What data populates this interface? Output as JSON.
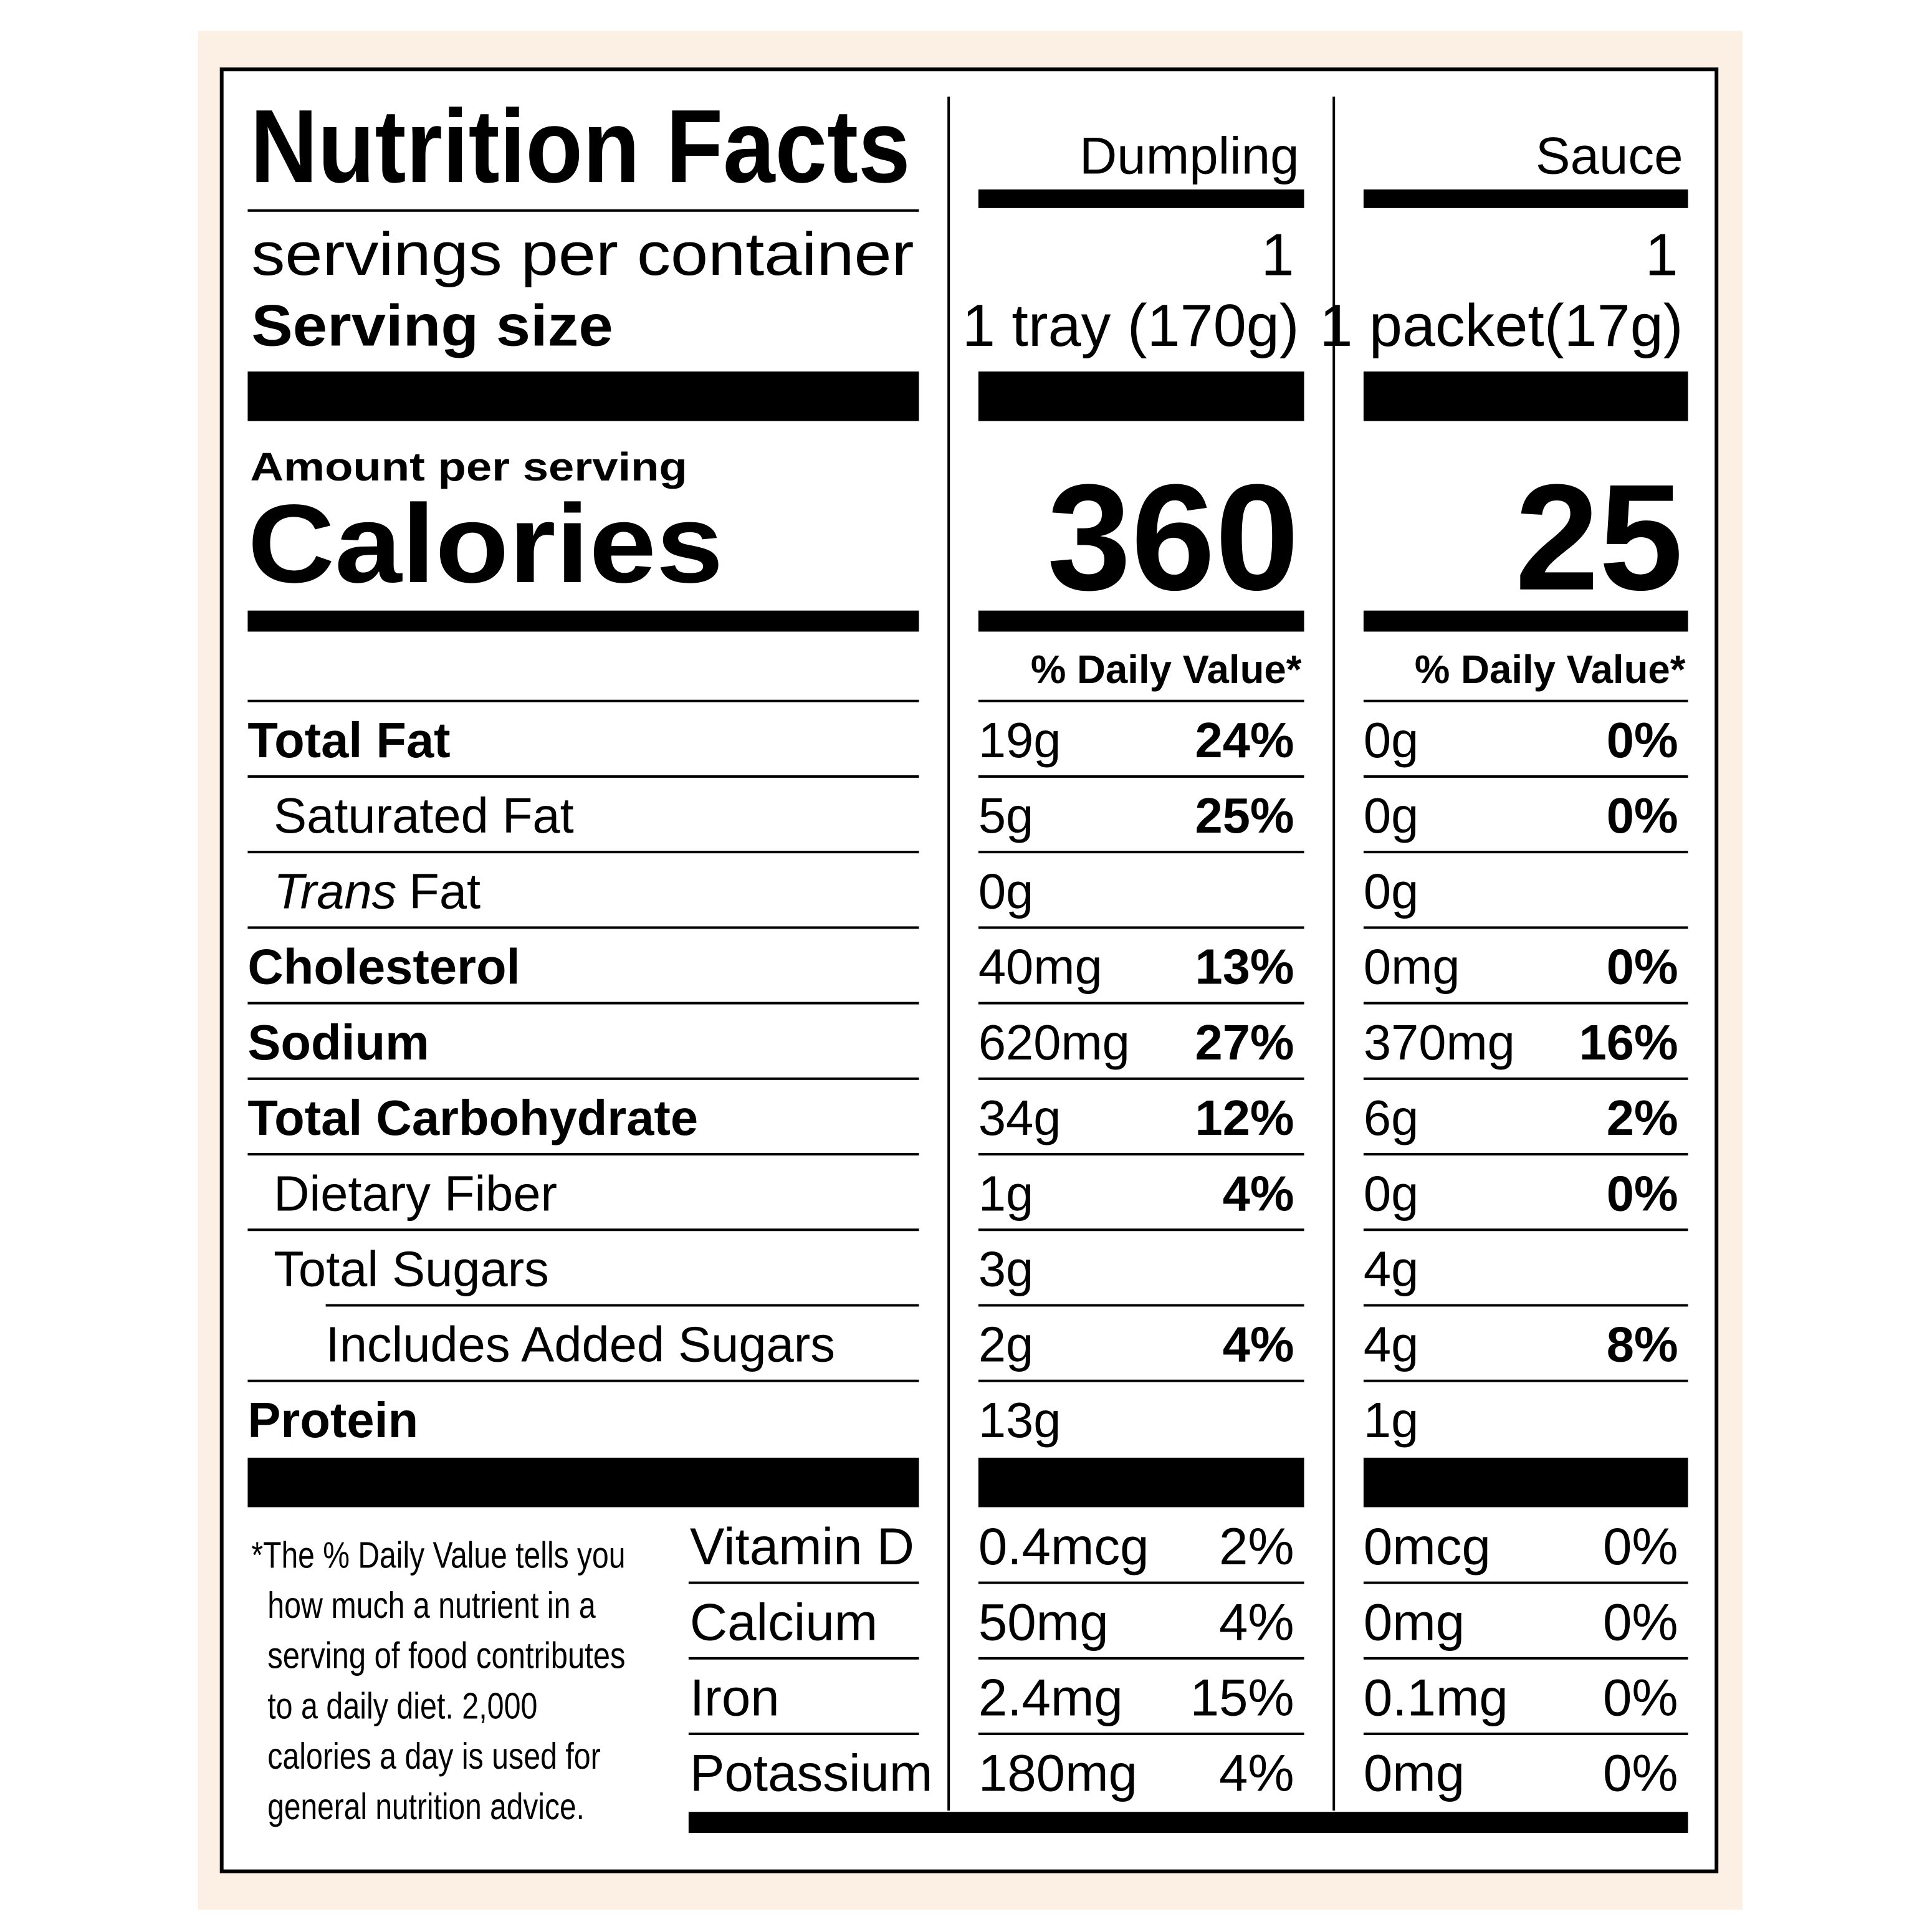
{
  "header": {
    "title": "Nutrition Facts",
    "servings_label": "servings per container",
    "serving_size_label": "Serving size",
    "amount_per_serving": "Amount per serving",
    "calories_label": "Calories"
  },
  "columns": [
    {
      "name": "Dumpling",
      "servings": "1",
      "serving_size": "1 tray (170g)",
      "calories": "360",
      "daily_value_label": "% Daily Value*"
    },
    {
      "name": "Sauce",
      "servings": "1",
      "serving_size": "1 packet(17g)",
      "calories": "25",
      "daily_value_label": "% Daily Value*"
    }
  ],
  "nutrients": [
    {
      "label_parts": [
        {
          "text": "Total Fat"
        }
      ],
      "level": 0,
      "values": [
        {
          "amount": "19g",
          "dv": "24%"
        },
        {
          "amount": "0g",
          "dv": "0%"
        }
      ]
    },
    {
      "label_parts": [
        {
          "text": "Saturated Fat"
        }
      ],
      "level": 1,
      "values": [
        {
          "amount": "5g",
          "dv": "25%"
        },
        {
          "amount": "0g",
          "dv": "0%"
        }
      ]
    },
    {
      "label_parts": [
        {
          "text": "Trans",
          "italic": true
        },
        {
          "text": "Fat"
        }
      ],
      "level": 1,
      "values": [
        {
          "amount": "0g"
        },
        {
          "amount": "0g"
        }
      ]
    },
    {
      "label_parts": [
        {
          "text": "Cholesterol"
        }
      ],
      "level": 0,
      "values": [
        {
          "amount": "40mg",
          "dv": "13%"
        },
        {
          "amount": "0mg",
          "dv": "0%"
        }
      ]
    },
    {
      "label_parts": [
        {
          "text": "Sodium"
        }
      ],
      "level": 0,
      "values": [
        {
          "amount": "620mg",
          "dv": "27%"
        },
        {
          "amount": "370mg",
          "dv": "16%"
        }
      ]
    },
    {
      "label_parts": [
        {
          "text": "Total Carbohydrate"
        }
      ],
      "level": 0,
      "values": [
        {
          "amount": "34g",
          "dv": "12%"
        },
        {
          "amount": "6g",
          "dv": "2%"
        }
      ]
    },
    {
      "label_parts": [
        {
          "text": "Dietary Fiber"
        }
      ],
      "level": 1,
      "values": [
        {
          "amount": "1g",
          "dv": "4%"
        },
        {
          "amount": "0g",
          "dv": "0%"
        }
      ]
    },
    {
      "label_parts": [
        {
          "text": "Total Sugars"
        }
      ],
      "level": 1,
      "values": [
        {
          "amount": "3g"
        },
        {
          "amount": "4g"
        }
      ]
    },
    {
      "label_parts": [
        {
          "text": "Includes Added Sugars"
        }
      ],
      "level": 2,
      "values": [
        {
          "amount": "2g",
          "dv": "4%"
        },
        {
          "amount": "4g",
          "dv": "8%"
        }
      ]
    },
    {
      "label_parts": [
        {
          "text": "Protein"
        }
      ],
      "level": 0,
      "values": [
        {
          "amount": "13g"
        },
        {
          "amount": "1g"
        }
      ]
    }
  ],
  "vitamins": [
    {
      "label": "Vitamin D",
      "values": [
        {
          "amount": "0.4mcg",
          "dv": "2%"
        },
        {
          "amount": "0mcg",
          "dv": "0%"
        }
      ]
    },
    {
      "label": "Calcium",
      "values": [
        {
          "amount": "50mg",
          "dv": "4%"
        },
        {
          "amount": "0mg",
          "dv": "0%"
        }
      ]
    },
    {
      "label": "Iron",
      "values": [
        {
          "amount": "2.4mg",
          "dv": "15%"
        },
        {
          "amount": "0.1mg",
          "dv": "0%"
        }
      ]
    },
    {
      "label": "Potassium",
      "values": [
        {
          "amount": "180mg",
          "dv": "4%"
        },
        {
          "amount": "0mg",
          "dv": "0%"
        }
      ]
    }
  ],
  "footnote": [
    "*The % Daily Value tells you",
    "how much a nutrient in a",
    "serving of food contributes",
    "to a daily diet. 2,000",
    "calories a day is used for",
    "general nutrition advice."
  ]
}
